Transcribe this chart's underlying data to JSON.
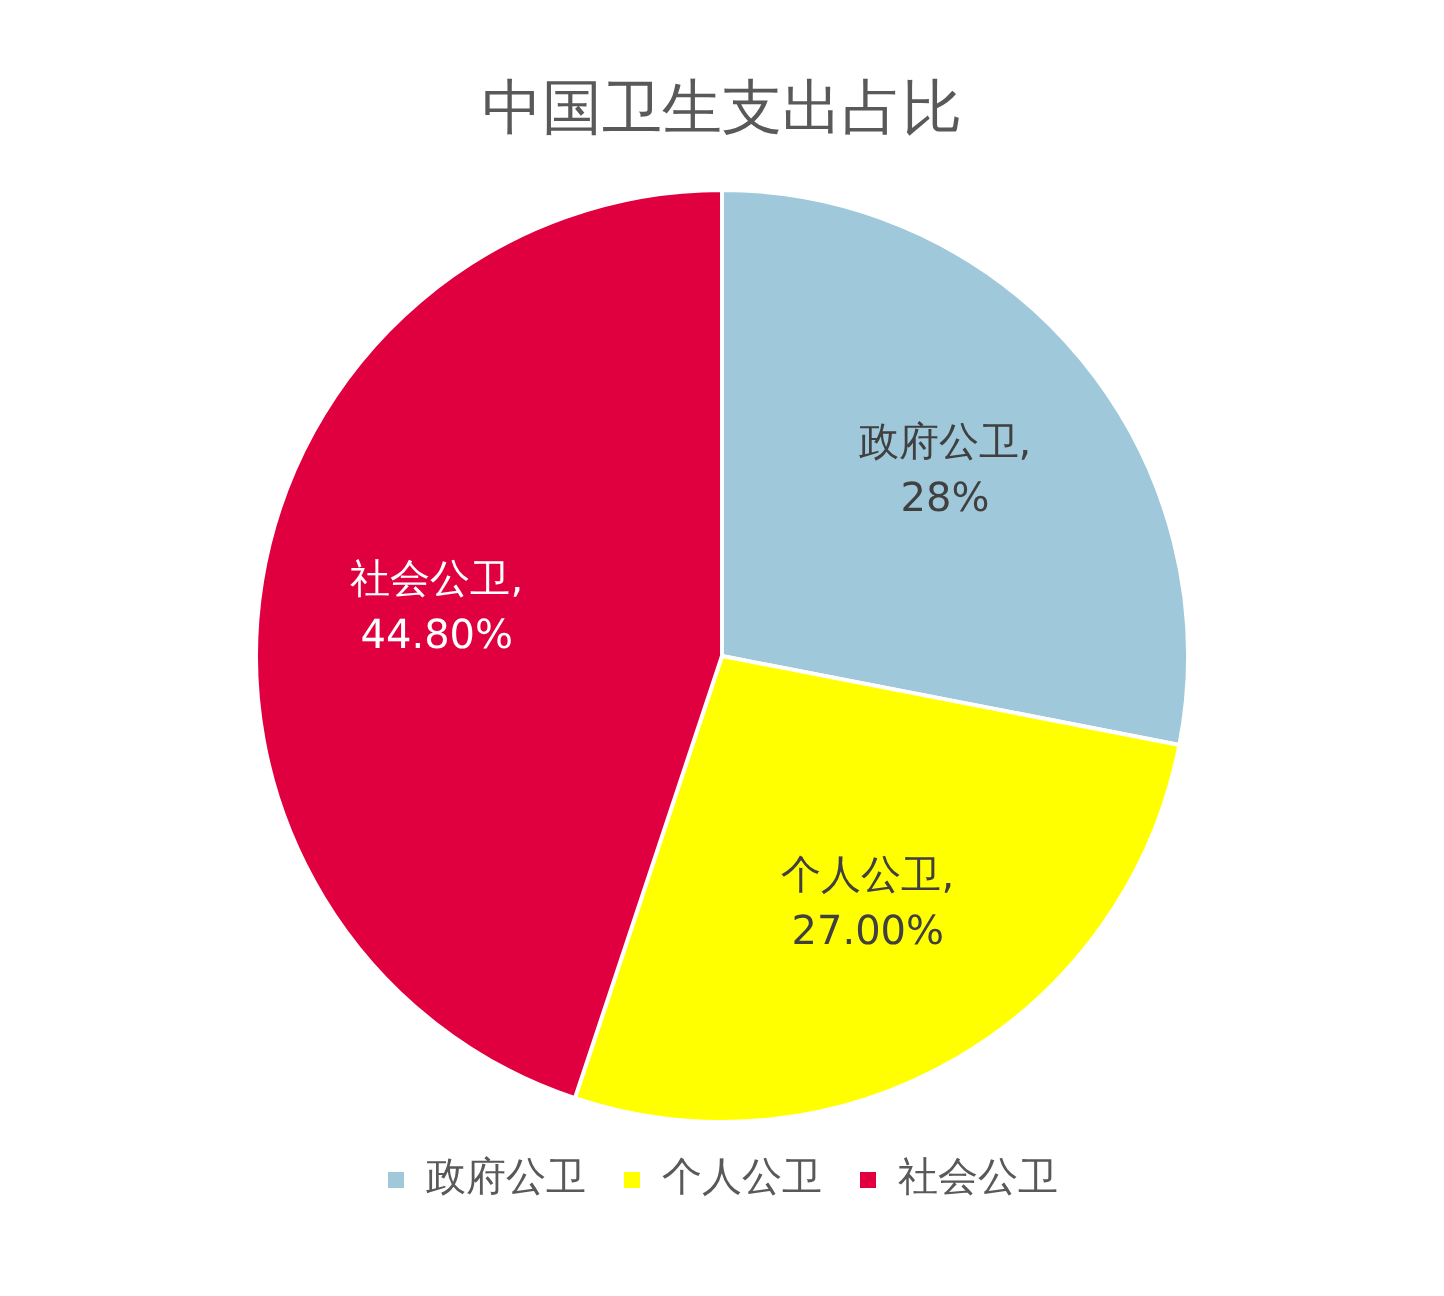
{
  "chart_data": {
    "type": "pie",
    "title": "中国卫生支出占比",
    "categories": [
      "政府公卫",
      "个人公卫",
      "社会公卫"
    ],
    "values": [
      28,
      27.0,
      44.8
    ],
    "value_labels": [
      "政府公卫, 28%",
      "个人公卫, 27.00%",
      "社会公卫, 44.80%"
    ],
    "colors": [
      "#9fc8da",
      "#ffff00",
      "#e0003f"
    ],
    "legend": "bottom"
  }
}
